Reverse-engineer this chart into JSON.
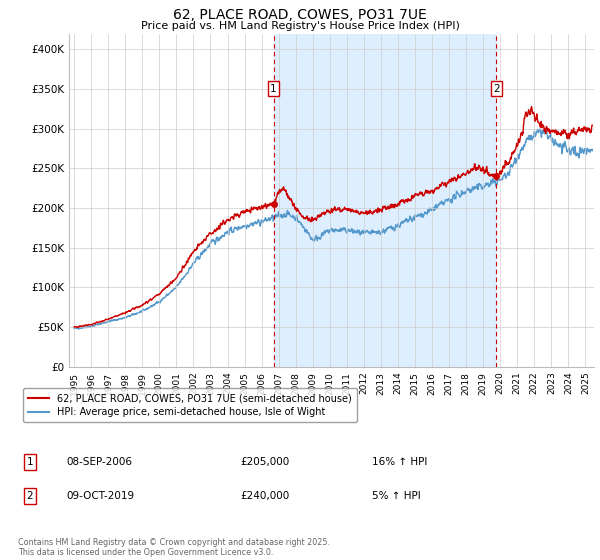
{
  "title": "62, PLACE ROAD, COWES, PO31 7UE",
  "subtitle": "Price paid vs. HM Land Registry's House Price Index (HPI)",
  "ylabel_ticks": [
    "£0",
    "£50K",
    "£100K",
    "£150K",
    "£200K",
    "£250K",
    "£300K",
    "£350K",
    "£400K"
  ],
  "ytick_values": [
    0,
    50000,
    100000,
    150000,
    200000,
    250000,
    300000,
    350000,
    400000
  ],
  "ylim": [
    0,
    420000
  ],
  "xlim_start": 1994.7,
  "xlim_end": 2025.5,
  "xtick_years": [
    1995,
    1996,
    1997,
    1998,
    1999,
    2000,
    2001,
    2002,
    2003,
    2004,
    2005,
    2006,
    2007,
    2008,
    2009,
    2010,
    2011,
    2012,
    2013,
    2014,
    2015,
    2016,
    2017,
    2018,
    2019,
    2020,
    2021,
    2022,
    2023,
    2024,
    2025
  ],
  "sale1_x": 2006.7,
  "sale1_y": 205000,
  "sale1_label": "1",
  "sale2_x": 2019.78,
  "sale2_y": 240000,
  "sale2_label": "2",
  "line_color_property": "#cc0000",
  "line_color_hpi": "#5599cc",
  "shade_color": "#ddeeff",
  "vline_color": "#cc0000",
  "legend_label1": "62, PLACE ROAD, COWES, PO31 7UE (semi-detached house)",
  "legend_label2": "HPI: Average price, semi-detached house, Isle of Wight",
  "table_rows": [
    {
      "num": "1",
      "date": "08-SEP-2006",
      "price": "£205,000",
      "hpi": "16% ↑ HPI"
    },
    {
      "num": "2",
      "date": "09-OCT-2019",
      "price": "£240,000",
      "hpi": "5% ↑ HPI"
    }
  ],
  "footnote": "Contains HM Land Registry data © Crown copyright and database right 2025.\nThis data is licensed under the Open Government Licence v3.0.",
  "bg_color": "#ffffff",
  "plot_bg_color": "#ffffff",
  "grid_color": "#cccccc"
}
